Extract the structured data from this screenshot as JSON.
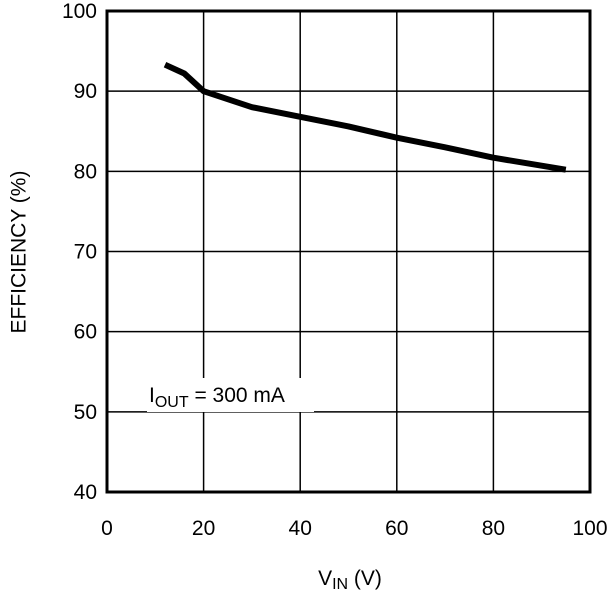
{
  "chart_data": {
    "type": "line",
    "title": "",
    "xlabel": "VIN (V)",
    "xlabel_main": "V",
    "xlabel_sub": "IN",
    "xlabel_suffix": " (V)",
    "ylabel": "EFFICIENCY (%)",
    "xlim": [
      0,
      100
    ],
    "ylim": [
      40,
      100
    ],
    "x_ticks": [
      0,
      20,
      40,
      60,
      80,
      100
    ],
    "y_ticks": [
      40,
      50,
      60,
      70,
      80,
      90,
      100
    ],
    "grid": true,
    "legend": null,
    "annotation": {
      "text": "IOUT = 300 mA",
      "main": "I",
      "sub": "OUT",
      "rest": " = 300 mA"
    },
    "series": [
      {
        "name": "IOUT = 300 mA",
        "color": "#000000",
        "x": [
          12,
          16,
          20,
          30,
          40,
          50,
          60,
          70,
          80,
          95
        ],
        "y": [
          93.3,
          92.2,
          90.0,
          88.0,
          86.8,
          85.6,
          84.2,
          83.0,
          81.7,
          80.2
        ]
      }
    ]
  }
}
